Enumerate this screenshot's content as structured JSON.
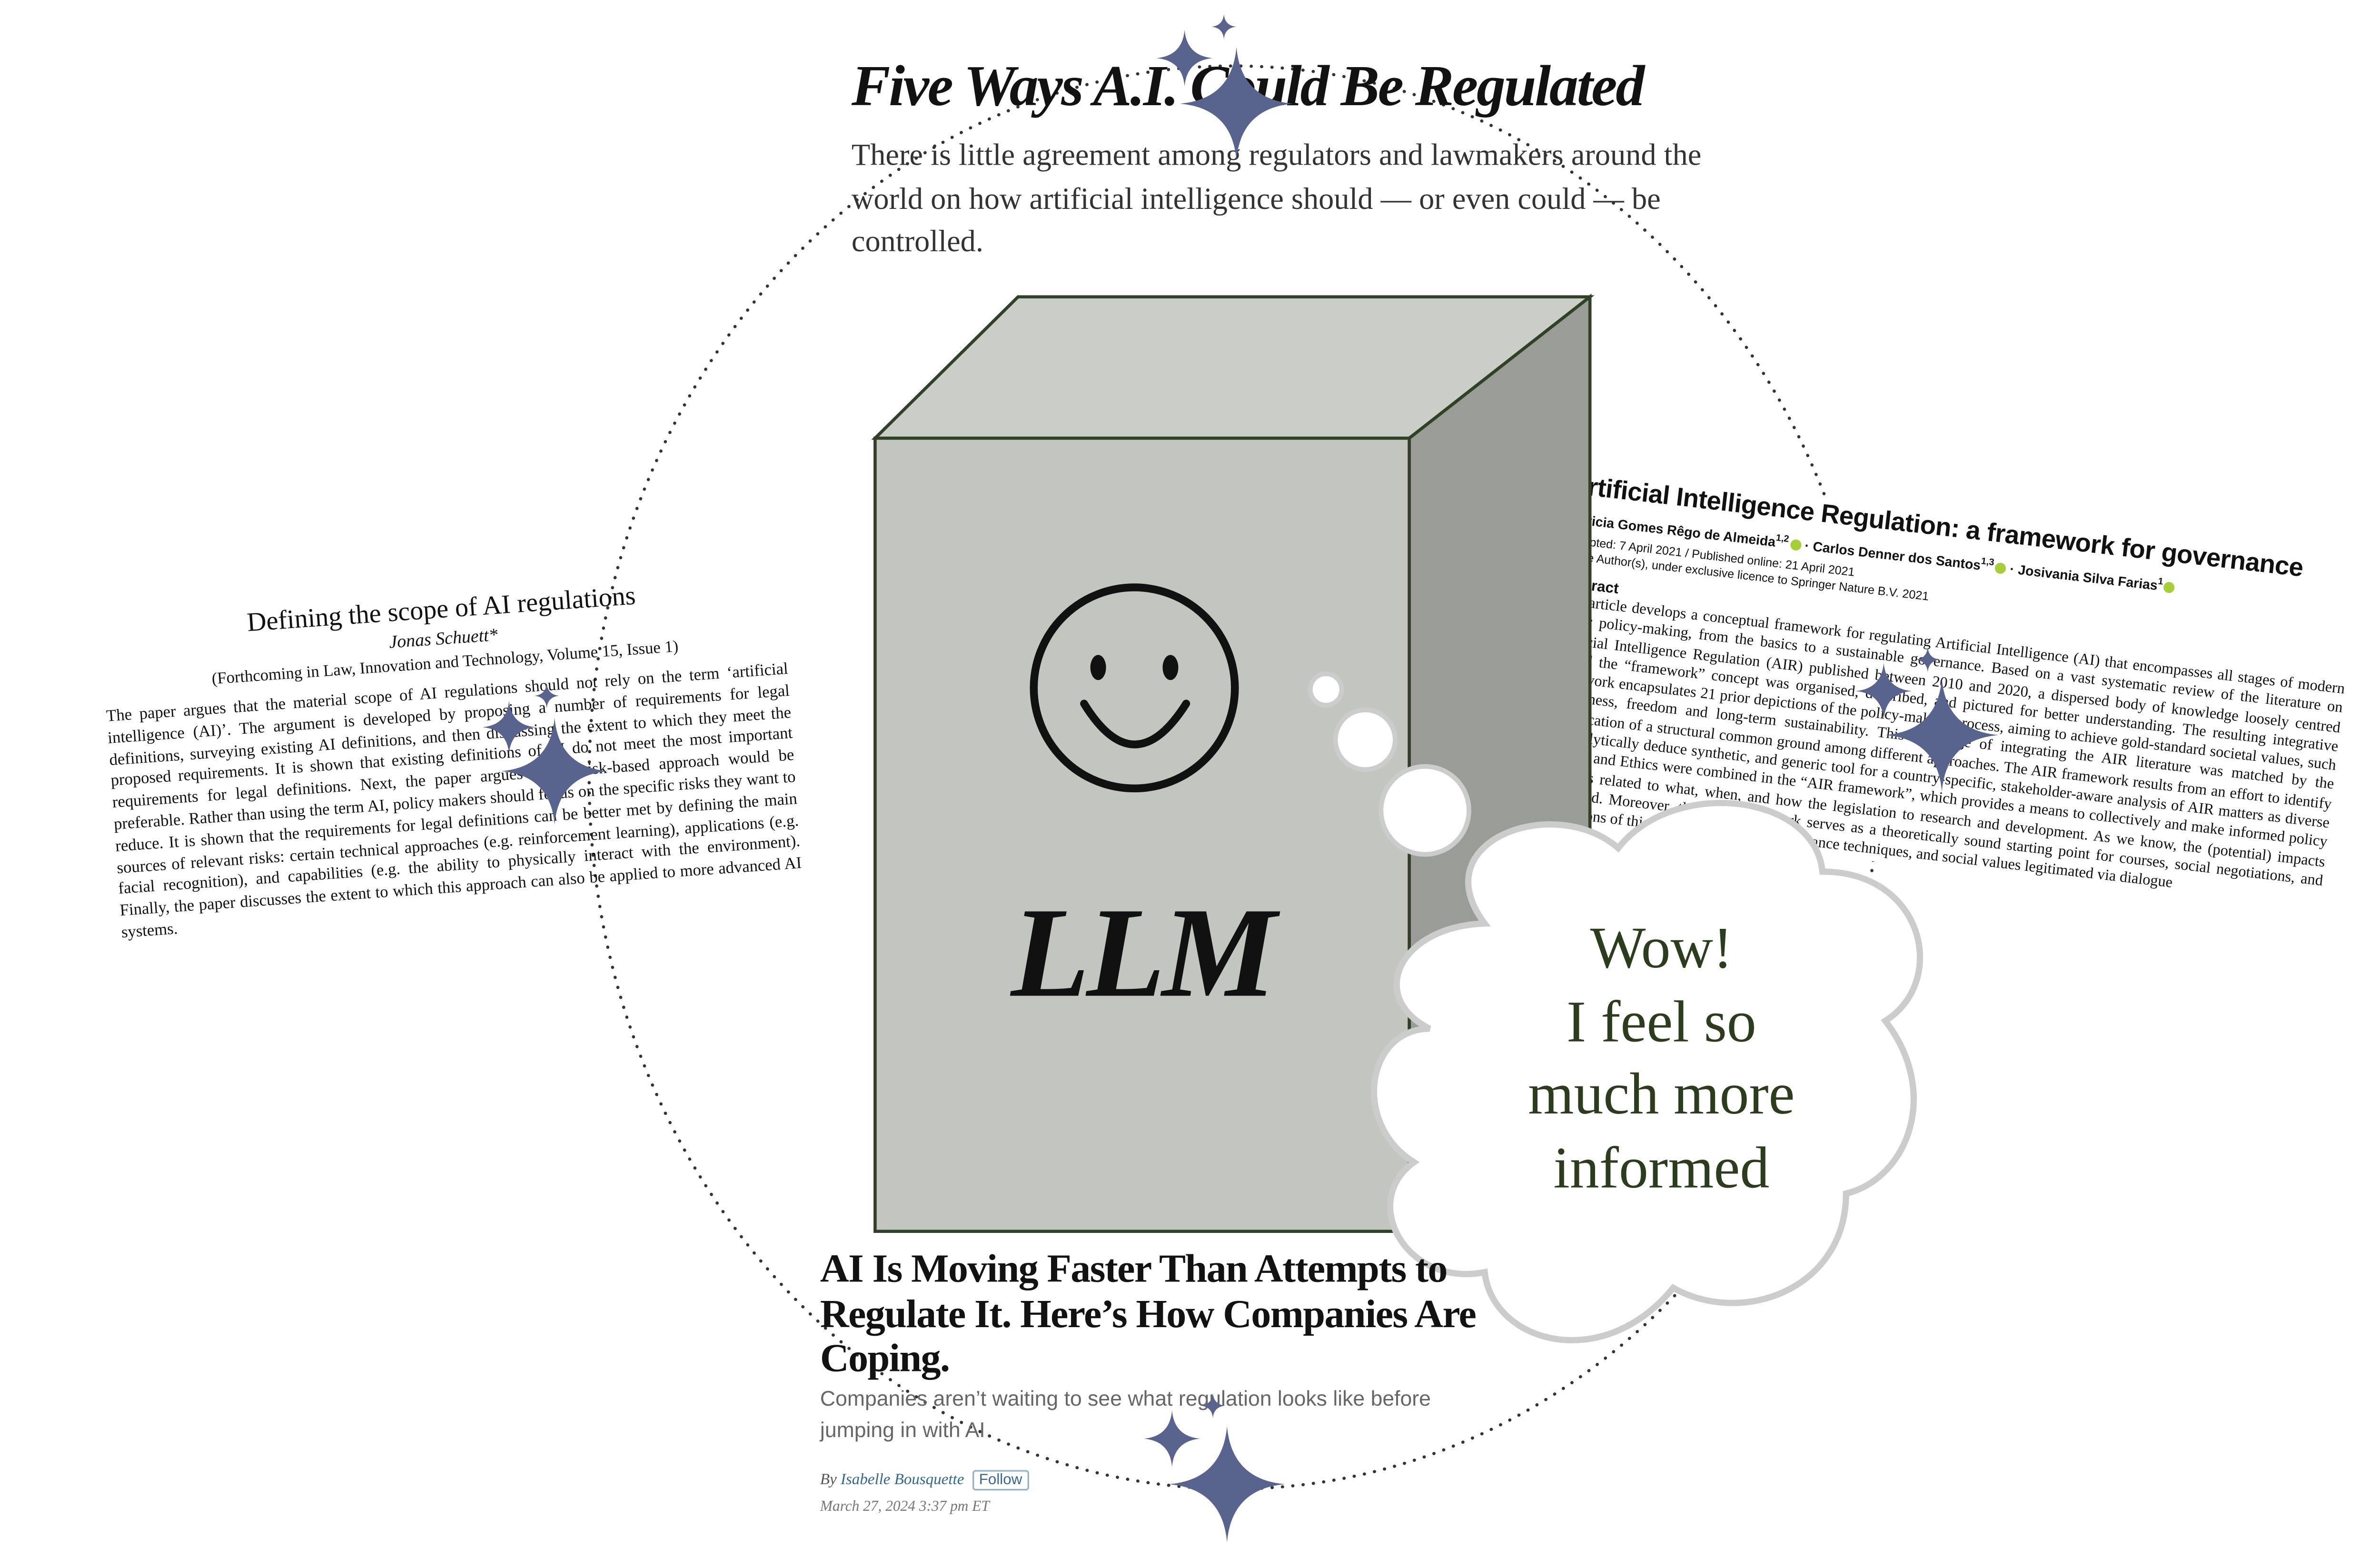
{
  "nyt_header": {
    "title": "Five Ways A.I. Could Be Regulated",
    "subtitle": "There is little agreement among regulators and lawmakers around the world on how artificial intelligence should — or even could — be controlled."
  },
  "paper_left": {
    "title": "Defining the scope of AI regulations",
    "author": "Jonas Schuett*",
    "forthcoming": "(Forthcoming in Law, Innovation and Technology, Volume 15, Issue 1)",
    "abstract": "The paper argues that the material scope of AI regulations should not rely on the term ‘artificial intelligence (AI)’. The argument is developed by proposing a number of requirements for legal definitions, surveying existing AI definitions, and then discussing the extent to which they meet the proposed requirements. It is shown that existing definitions of AI do not meet the most important requirements for legal definitions. Next, the paper argues that a risk-based approach would be preferable. Rather than using the term AI, policy makers should focus on the specific risks they want to reduce. It is shown that the requirements for legal definitions can be better met by defining the main sources of relevant risks: certain technical approaches (e.g. reinforcement learning), applications (e.g. facial recognition), and capabilities (e.g. the ability to physically interact with the environment). Finally, the paper discusses the extent to which this approach can also be applied to more advanced AI systems."
  },
  "paper_right": {
    "title": "Artificial Intelligence Regulation: a framework for governance",
    "author1": "Patricia Gomes Rêgo de Almeida",
    "author1_sup": "1,2",
    "author2": "Carlos Denner dos Santos",
    "author2_sup": "1,3",
    "author3": "Josivania Silva Farias",
    "author3_sup": "1",
    "dates": "Accepted: 7 April 2021 / Published online: 21 April 2021",
    "licence": "© The Author(s), under exclusive licence to Springer Nature B.V. 2021",
    "abstract_heading": "Abstract",
    "abstract": "This article develops a conceptual framework for regulating Artificial Intelligence (AI) that encompasses all stages of modern public policy-making, from the basics to a sustainable governance. Based on a vast systematic review of the literature on Artificial Intelligence Regulation (AIR) published between 2010 and 2020, a dispersed body of knowledge loosely centred around the “framework” concept was organised, described, and pictured for better understanding. The resulting integrative framework encapsulates 21 prior depictions of the policy-making process, aiming to achieve gold-standard societal values, such as fairness, freedom and long-term sustainability. This challenge of integrating the AIR literature was matched by the identification of a structural common ground among different approaches. The AIR framework results from an effort to identify and analytically deduce synthetic, and generic tool for a country-specific, stakeholder-aware analysis of AIR matters as diverse as Agile and Ethics were combined in the “AIR framework”, which provides a means to collectively and make informed policy decisions related to what, when, and how the legislation to research and development. As we know, the (potential) impacts mentioned. Moreover, the AIR framework serves as a theoretically sound starting point for courses, social negotiations, and applications of this technology should governance techniques, and social values legitimated via dialogue"
  },
  "llm_box": {
    "label": "LLM"
  },
  "speech_bubble": {
    "line1": "Wow!",
    "line2": "I feel so",
    "line3": "much more",
    "line4": "informed"
  },
  "wsj_article": {
    "title": "AI Is Moving Faster Than Attempts to Regulate It. Here’s How Companies Are Coping.",
    "dek": "Companies aren’t waiting to see what regulation looks like before jumping in with AI",
    "by": "By",
    "author": "Isabelle Bousquette",
    "follow_label": "Follow",
    "date": "March 27, 2024 3:37 pm ET"
  },
  "colors": {
    "sparkle": "#58638e",
    "box_front": "#c3c6bf",
    "box_top": "#cbcdc7",
    "box_side": "#9a9d96",
    "box_edge": "#2f4228",
    "speech_text": "#2b3d1c",
    "orbit": "#333333"
  }
}
